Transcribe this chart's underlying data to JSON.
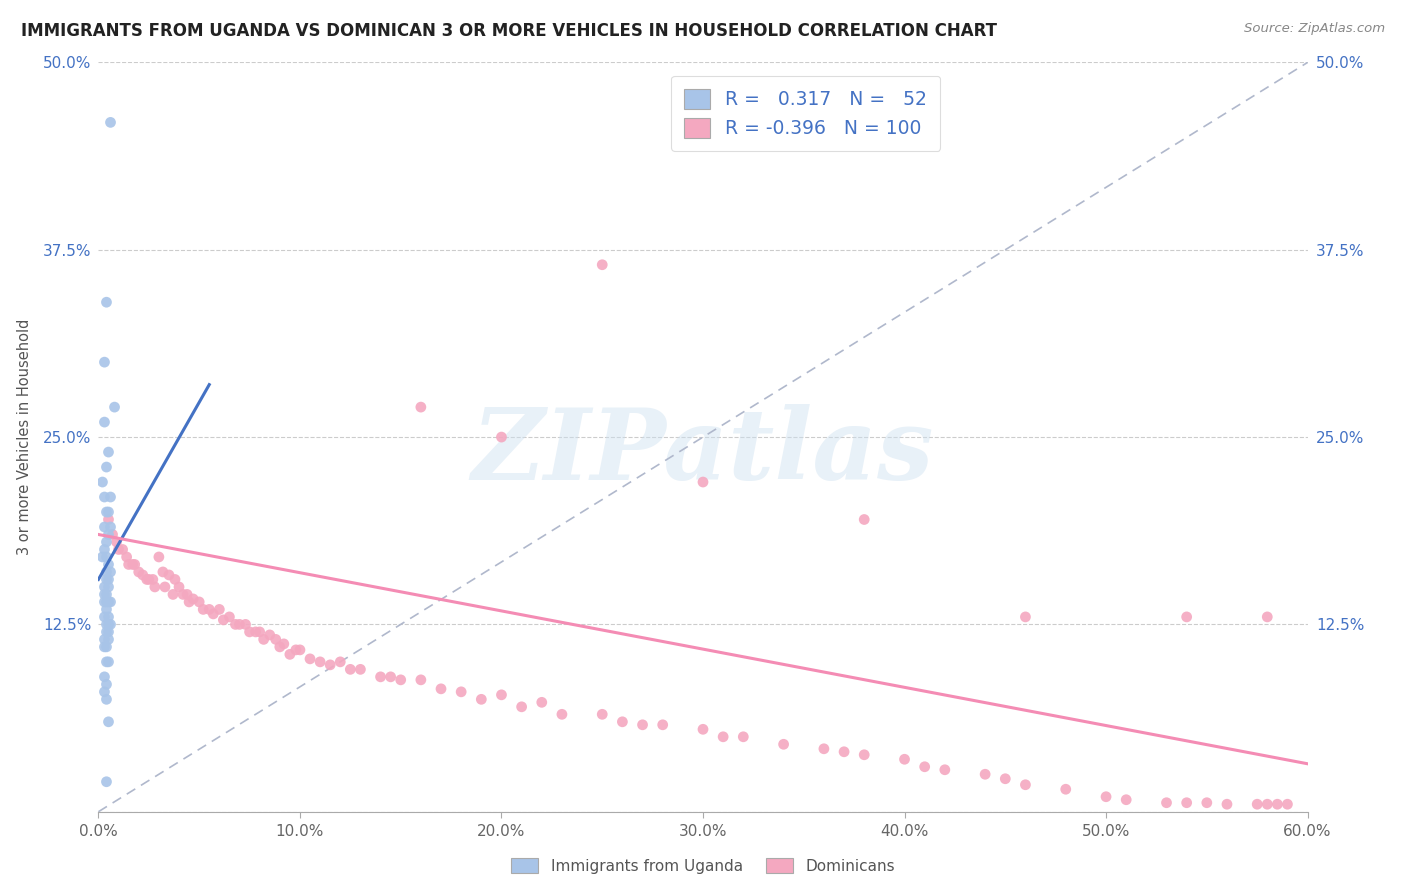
{
  "title": "IMMIGRANTS FROM UGANDA VS DOMINICAN 3 OR MORE VEHICLES IN HOUSEHOLD CORRELATION CHART",
  "source": "Source: ZipAtlas.com",
  "ylabel": "3 or more Vehicles in Household",
  "xlim": [
    0.0,
    0.6
  ],
  "ylim": [
    0.0,
    0.5
  ],
  "xticks": [
    0.0,
    0.1,
    0.2,
    0.3,
    0.4,
    0.5,
    0.6
  ],
  "xticklabels": [
    "0.0%",
    "10.0%",
    "20.0%",
    "30.0%",
    "40.0%",
    "50.0%",
    "60.0%"
  ],
  "yticks": [
    0.0,
    0.125,
    0.25,
    0.375,
    0.5
  ],
  "yticklabels_left": [
    "",
    "12.5%",
    "25.0%",
    "37.5%",
    "50.0%"
  ],
  "yticklabels_right": [
    "",
    "12.5%",
    "25.0%",
    "37.5%",
    "50.0%"
  ],
  "uganda_R": 0.317,
  "uganda_N": 52,
  "dominican_R": -0.396,
  "dominican_N": 100,
  "uganda_color": "#a8c4e8",
  "dominican_color": "#f4a8c0",
  "uganda_line_color": "#4472c4",
  "dominican_line_color": "#f48cb4",
  "ref_line_color": "#b0b8cc",
  "background_color": "#ffffff",
  "legend_label_uganda": "Immigrants from Uganda",
  "legend_label_dominican": "Dominicans",
  "uganda_x": [
    0.006,
    0.004,
    0.003,
    0.008,
    0.003,
    0.005,
    0.004,
    0.002,
    0.003,
    0.006,
    0.004,
    0.005,
    0.003,
    0.006,
    0.005,
    0.004,
    0.003,
    0.002,
    0.004,
    0.005,
    0.004,
    0.006,
    0.005,
    0.004,
    0.003,
    0.005,
    0.004,
    0.003,
    0.006,
    0.004,
    0.005,
    0.003,
    0.004,
    0.005,
    0.003,
    0.004,
    0.005,
    0.006,
    0.005,
    0.004,
    0.003,
    0.005,
    0.004,
    0.003,
    0.004,
    0.005,
    0.003,
    0.004,
    0.003,
    0.004,
    0.005,
    0.004
  ],
  "uganda_y": [
    0.46,
    0.34,
    0.3,
    0.27,
    0.26,
    0.24,
    0.23,
    0.22,
    0.21,
    0.21,
    0.2,
    0.2,
    0.19,
    0.19,
    0.185,
    0.18,
    0.175,
    0.17,
    0.17,
    0.165,
    0.16,
    0.16,
    0.155,
    0.155,
    0.15,
    0.15,
    0.145,
    0.145,
    0.14,
    0.14,
    0.14,
    0.14,
    0.135,
    0.13,
    0.13,
    0.125,
    0.125,
    0.125,
    0.12,
    0.12,
    0.115,
    0.115,
    0.11,
    0.11,
    0.1,
    0.1,
    0.09,
    0.085,
    0.08,
    0.075,
    0.06,
    0.02
  ],
  "dominican_x": [
    0.005,
    0.007,
    0.009,
    0.01,
    0.012,
    0.014,
    0.015,
    0.017,
    0.018,
    0.02,
    0.022,
    0.024,
    0.025,
    0.027,
    0.028,
    0.03,
    0.032,
    0.033,
    0.035,
    0.037,
    0.038,
    0.04,
    0.042,
    0.044,
    0.045,
    0.047,
    0.05,
    0.052,
    0.055,
    0.057,
    0.06,
    0.062,
    0.065,
    0.068,
    0.07,
    0.073,
    0.075,
    0.078,
    0.08,
    0.082,
    0.085,
    0.088,
    0.09,
    0.092,
    0.095,
    0.098,
    0.1,
    0.105,
    0.11,
    0.115,
    0.12,
    0.125,
    0.13,
    0.14,
    0.145,
    0.15,
    0.16,
    0.17,
    0.18,
    0.19,
    0.2,
    0.21,
    0.22,
    0.23,
    0.25,
    0.26,
    0.27,
    0.28,
    0.3,
    0.31,
    0.32,
    0.34,
    0.36,
    0.37,
    0.38,
    0.4,
    0.41,
    0.42,
    0.44,
    0.45,
    0.46,
    0.48,
    0.5,
    0.51,
    0.53,
    0.54,
    0.55,
    0.56,
    0.575,
    0.58,
    0.585,
    0.59,
    0.25,
    0.16,
    0.2,
    0.3,
    0.38,
    0.46,
    0.54,
    0.58
  ],
  "dominican_y": [
    0.195,
    0.185,
    0.18,
    0.175,
    0.175,
    0.17,
    0.165,
    0.165,
    0.165,
    0.16,
    0.158,
    0.155,
    0.155,
    0.155,
    0.15,
    0.17,
    0.16,
    0.15,
    0.158,
    0.145,
    0.155,
    0.15,
    0.145,
    0.145,
    0.14,
    0.142,
    0.14,
    0.135,
    0.135,
    0.132,
    0.135,
    0.128,
    0.13,
    0.125,
    0.125,
    0.125,
    0.12,
    0.12,
    0.12,
    0.115,
    0.118,
    0.115,
    0.11,
    0.112,
    0.105,
    0.108,
    0.108,
    0.102,
    0.1,
    0.098,
    0.1,
    0.095,
    0.095,
    0.09,
    0.09,
    0.088,
    0.088,
    0.082,
    0.08,
    0.075,
    0.078,
    0.07,
    0.073,
    0.065,
    0.065,
    0.06,
    0.058,
    0.058,
    0.055,
    0.05,
    0.05,
    0.045,
    0.042,
    0.04,
    0.038,
    0.035,
    0.03,
    0.028,
    0.025,
    0.022,
    0.018,
    0.015,
    0.01,
    0.008,
    0.006,
    0.006,
    0.006,
    0.005,
    0.005,
    0.005,
    0.005,
    0.005,
    0.365,
    0.27,
    0.25,
    0.22,
    0.195,
    0.13,
    0.13,
    0.13
  ],
  "uganda_trend_x": [
    0.0,
    0.055
  ],
  "uganda_trend_y": [
    0.155,
    0.285
  ],
  "dominican_trend_x": [
    0.0,
    0.6
  ],
  "dominican_trend_y": [
    0.185,
    0.032
  ],
  "ref_line_x": [
    0.0,
    0.6
  ],
  "ref_line_y": [
    0.0,
    0.5
  ]
}
